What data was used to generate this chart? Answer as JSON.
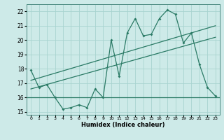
{
  "x": [
    0,
    1,
    2,
    3,
    4,
    5,
    6,
    7,
    8,
    9,
    10,
    11,
    12,
    13,
    14,
    15,
    16,
    17,
    18,
    19,
    20,
    21,
    22,
    23
  ],
  "main_line": [
    17.9,
    16.7,
    16.9,
    16.0,
    15.2,
    15.3,
    15.5,
    15.3,
    16.6,
    16.0,
    20.0,
    17.5,
    20.5,
    21.5,
    20.3,
    20.4,
    21.5,
    22.1,
    21.8,
    19.8,
    20.5,
    18.3,
    16.7,
    16.1
  ],
  "upper_line_x": [
    0,
    23
  ],
  "upper_line_y": [
    17.2,
    21.0
  ],
  "lower_line_x": [
    0,
    23
  ],
  "lower_line_y": [
    16.6,
    20.2
  ],
  "hline_y": 16.0,
  "xlim": [
    -0.5,
    23.5
  ],
  "ylim": [
    14.8,
    22.5
  ],
  "yticks": [
    15,
    16,
    17,
    18,
    19,
    20,
    21,
    22
  ],
  "xticks": [
    0,
    1,
    2,
    3,
    4,
    5,
    6,
    7,
    8,
    9,
    10,
    11,
    12,
    13,
    14,
    15,
    16,
    17,
    18,
    19,
    20,
    21,
    22,
    23
  ],
  "xlabel": "Humidex (Indice chaleur)",
  "line_color": "#2a7a65",
  "bg_color": "#cdeae8",
  "grid_color": "#a8d4d0"
}
